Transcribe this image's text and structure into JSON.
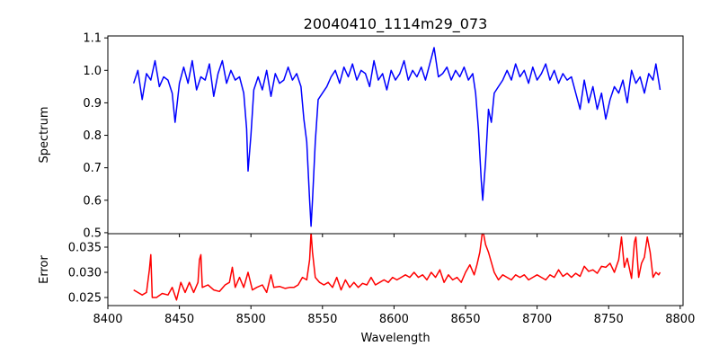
{
  "chart_data": [
    {
      "type": "line",
      "title": "20040410_1114m29_073",
      "ylabel": "Spectrum",
      "xlabel": "",
      "xlim": [
        8400,
        8802
      ],
      "ylim": [
        0.497,
        1.106
      ],
      "yticks": [
        "0.5",
        "0.6",
        "0.7",
        "0.8",
        "0.9",
        "1.0",
        "1.1"
      ],
      "color": "#0000ff",
      "grid": false,
      "x": [
        8418,
        8421,
        8424,
        8427,
        8430,
        8433,
        8436,
        8439,
        8442,
        8445,
        8447,
        8450,
        8453,
        8456,
        8459,
        8462,
        8465,
        8468,
        8471,
        8474,
        8477,
        8480,
        8483,
        8486,
        8489,
        8492,
        8495,
        8497,
        8498,
        8500,
        8502,
        8505,
        8508,
        8511,
        8514,
        8517,
        8520,
        8523,
        8526,
        8529,
        8532,
        8535,
        8537,
        8539,
        8541,
        8542,
        8543,
        8545,
        8547,
        8550,
        8553,
        8556,
        8559,
        8562,
        8565,
        8568,
        8571,
        8574,
        8577,
        8580,
        8583,
        8586,
        8589,
        8592,
        8595,
        8598,
        8601,
        8604,
        8607,
        8610,
        8613,
        8616,
        8619,
        8622,
        8625,
        8628,
        8631,
        8634,
        8637,
        8640,
        8643,
        8646,
        8649,
        8652,
        8655,
        8657,
        8659,
        8661,
        8662,
        8664,
        8666,
        8668,
        8670,
        8673,
        8676,
        8679,
        8682,
        8685,
        8688,
        8691,
        8694,
        8697,
        8700,
        8703,
        8706,
        8709,
        8712,
        8715,
        8718,
        8721,
        8724,
        8727,
        8730,
        8733,
        8736,
        8739,
        8742,
        8745,
        8748,
        8751,
        8754,
        8757,
        8760,
        8763,
        8766,
        8769,
        8772,
        8775,
        8778,
        8781,
        8783,
        8786
      ],
      "values": [
        0.96,
        1.0,
        0.91,
        0.99,
        0.97,
        1.03,
        0.95,
        0.98,
        0.97,
        0.93,
        0.84,
        0.96,
        1.01,
        0.96,
        1.03,
        0.94,
        0.98,
        0.97,
        1.02,
        0.92,
        0.99,
        1.03,
        0.96,
        1.0,
        0.97,
        0.98,
        0.93,
        0.82,
        0.69,
        0.8,
        0.94,
        0.98,
        0.94,
        1.0,
        0.92,
        0.99,
        0.96,
        0.97,
        1.01,
        0.97,
        0.99,
        0.95,
        0.85,
        0.78,
        0.6,
        0.52,
        0.6,
        0.78,
        0.91,
        0.93,
        0.95,
        0.98,
        1.0,
        0.96,
        1.01,
        0.98,
        1.02,
        0.97,
        1.0,
        0.99,
        0.95,
        1.03,
        0.97,
        0.99,
        0.94,
        1.0,
        0.97,
        0.99,
        1.03,
        0.97,
        1.0,
        0.98,
        1.01,
        0.97,
        1.02,
        1.07,
        0.98,
        0.99,
        1.01,
        0.97,
        1.0,
        0.98,
        1.01,
        0.97,
        0.99,
        0.93,
        0.82,
        0.66,
        0.6,
        0.72,
        0.88,
        0.84,
        0.93,
        0.95,
        0.97,
        1.0,
        0.97,
        1.02,
        0.98,
        1.0,
        0.96,
        1.01,
        0.97,
        0.99,
        1.02,
        0.97,
        1.0,
        0.96,
        0.99,
        0.97,
        0.98,
        0.93,
        0.88,
        0.97,
        0.9,
        0.95,
        0.88,
        0.93,
        0.85,
        0.91,
        0.95,
        0.93,
        0.97,
        0.9,
        1.0,
        0.96,
        0.98,
        0.93,
        0.99,
        0.97,
        1.02,
        0.94
      ]
    },
    {
      "type": "line",
      "ylabel": "Error",
      "xlabel": "Wavelength",
      "xlim": [
        8400,
        8802
      ],
      "ylim": [
        0.02339,
        0.03768
      ],
      "xticks": [
        "8400",
        "8450",
        "8500",
        "8550",
        "8600",
        "8650",
        "8700",
        "8750",
        "8800"
      ],
      "yticks": [
        "0.025",
        "0.030",
        "0.035"
      ],
      "color": "#ff0000",
      "grid": false,
      "x": [
        8418,
        8421,
        8424,
        8427,
        8429,
        8430,
        8431,
        8434,
        8438,
        8442,
        8445,
        8448,
        8451,
        8454,
        8457,
        8460,
        8463,
        8464,
        8465,
        8466,
        8470,
        8474,
        8478,
        8482,
        8485,
        8487,
        8489,
        8492,
        8495,
        8498,
        8501,
        8504,
        8508,
        8511,
        8514,
        8516,
        8520,
        8524,
        8527,
        8530,
        8533,
        8536,
        8539,
        8541,
        8542,
        8543,
        8545,
        8548,
        8551,
        8554,
        8557,
        8560,
        8563,
        8566,
        8569,
        8572,
        8575,
        8578,
        8581,
        8584,
        8587,
        8590,
        8593,
        8596,
        8599,
        8602,
        8605,
        8608,
        8611,
        8614,
        8617,
        8620,
        8623,
        8626,
        8629,
        8632,
        8635,
        8638,
        8641,
        8644,
        8647,
        8650,
        8653,
        8656,
        8658,
        8660,
        8662,
        8664,
        8666,
        8668,
        8670,
        8673,
        8676,
        8679,
        8682,
        8685,
        8688,
        8691,
        8694,
        8697,
        8700,
        8703,
        8706,
        8709,
        8712,
        8715,
        8718,
        8721,
        8724,
        8727,
        8730,
        8733,
        8736,
        8739,
        8742,
        8745,
        8748,
        8751,
        8754,
        8757,
        8759,
        8761,
        8763,
        8766,
        8768,
        8769,
        8771,
        8773,
        8775,
        8777,
        8779,
        8781,
        8783,
        8785,
        8786
      ],
      "values": [
        0.0265,
        0.026,
        0.0255,
        0.026,
        0.0305,
        0.0335,
        0.025,
        0.025,
        0.0258,
        0.0255,
        0.027,
        0.0245,
        0.028,
        0.026,
        0.028,
        0.026,
        0.028,
        0.0325,
        0.0335,
        0.027,
        0.0275,
        0.0265,
        0.0262,
        0.0275,
        0.028,
        0.031,
        0.027,
        0.029,
        0.027,
        0.03,
        0.0265,
        0.027,
        0.0275,
        0.026,
        0.0295,
        0.027,
        0.0272,
        0.0268,
        0.027,
        0.027,
        0.0275,
        0.029,
        0.0285,
        0.0325,
        0.038,
        0.034,
        0.029,
        0.028,
        0.0275,
        0.028,
        0.027,
        0.029,
        0.0265,
        0.0285,
        0.027,
        0.028,
        0.027,
        0.0278,
        0.0275,
        0.029,
        0.0275,
        0.028,
        0.0285,
        0.028,
        0.029,
        0.0285,
        0.029,
        0.0295,
        0.029,
        0.03,
        0.029,
        0.0295,
        0.0285,
        0.03,
        0.029,
        0.0305,
        0.028,
        0.0295,
        0.0285,
        0.029,
        0.028,
        0.03,
        0.0315,
        0.0295,
        0.0315,
        0.034,
        0.0385,
        0.0355,
        0.034,
        0.032,
        0.03,
        0.0285,
        0.0295,
        0.029,
        0.0285,
        0.0295,
        0.029,
        0.0295,
        0.0285,
        0.029,
        0.0295,
        0.029,
        0.0285,
        0.0295,
        0.029,
        0.0305,
        0.0292,
        0.0298,
        0.029,
        0.0298,
        0.0292,
        0.0312,
        0.0302,
        0.0305,
        0.0298,
        0.0312,
        0.031,
        0.0318,
        0.03,
        0.0325,
        0.037,
        0.031,
        0.0328,
        0.0288,
        0.036,
        0.037,
        0.029,
        0.0318,
        0.033,
        0.037,
        0.034,
        0.029,
        0.03,
        0.0295,
        0.03
      ]
    }
  ]
}
